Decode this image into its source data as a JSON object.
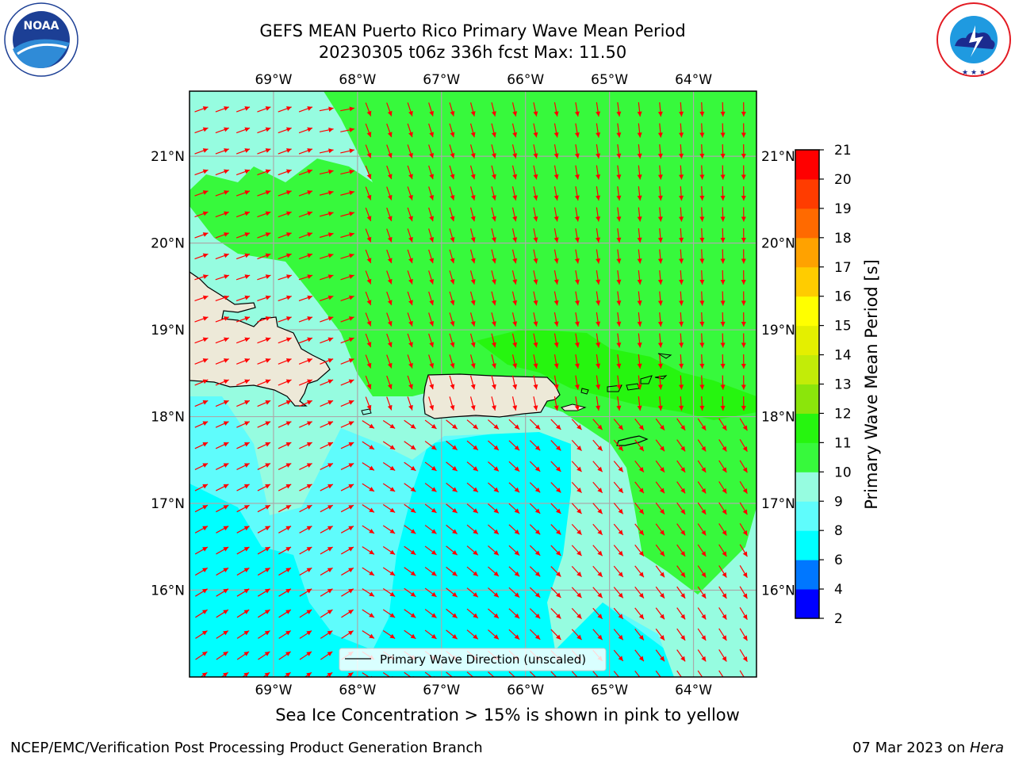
{
  "title_line1": "GEFS MEAN Puerto Rico Primary Wave Mean Period",
  "title_line2": "20230305 t06z 336h fcst   Max: 11.50",
  "caption": "Sea Ice Concentration > 15% is shown in pink to yellow",
  "footer_left": "NCEP/EMC/Verification Post Processing Product Generation Branch",
  "footer_right_date": "07 Mar 2023 on ",
  "footer_right_host": "Hera",
  "logos": {
    "noaa_text": "NOAA",
    "noaa_ring_text": "NATIONAL OCEANIC AND ATMOSPHERIC ADMINISTRATION · U.S. DEPARTMENT OF COMMERCE ·",
    "nws_ring_text": "NATIONAL WEATHER SERVICE"
  },
  "map": {
    "lon_range": [
      -70.0,
      -63.25
    ],
    "lat_range": [
      15.0,
      21.75
    ],
    "lon_ticks": [
      {
        "value": -69,
        "label": "69°W"
      },
      {
        "value": -68,
        "label": "68°W"
      },
      {
        "value": -67,
        "label": "67°W"
      },
      {
        "value": -66,
        "label": "66°W"
      },
      {
        "value": -65,
        "label": "65°W"
      },
      {
        "value": -64,
        "label": "64°W"
      }
    ],
    "lat_ticks": [
      {
        "value": 21,
        "label": "21°N"
      },
      {
        "value": 20,
        "label": "20°N"
      },
      {
        "value": 19,
        "label": "19°N"
      },
      {
        "value": 18,
        "label": "18°N"
      },
      {
        "value": 17,
        "label": "17°N"
      },
      {
        "value": 16,
        "label": "16°N"
      }
    ],
    "gridlines": true,
    "legend_label": "Primary Wave Direction (unscaled)",
    "colors": {
      "land": "#ede9d8",
      "coast": "#000000",
      "arrow": "#ff0000",
      "grid": "#aaaaaa",
      "period_7_8": "#00ffff",
      "period_8_9": "#5ffcfc",
      "period_9_10": "#96fce0",
      "period_10_11": "#37f93c",
      "period_11_12": "#26f50f"
    }
  },
  "colorbar": {
    "label": "Primary Wave Mean Period [s]",
    "ticks": [
      "2",
      "4",
      "6",
      "8",
      "9",
      "10",
      "11",
      "12",
      "13",
      "14",
      "15",
      "16",
      "17",
      "18",
      "19",
      "20",
      "21"
    ],
    "colors": [
      "#0000ff",
      "#0077ff",
      "#00ffff",
      "#5ffcfc",
      "#96fce0",
      "#37f93c",
      "#26f50f",
      "#8be50b",
      "#c2ec08",
      "#e4ef00",
      "#ffff00",
      "#ffcc00",
      "#ffa200",
      "#ff6a00",
      "#ff3c00",
      "#ff0000"
    ]
  }
}
